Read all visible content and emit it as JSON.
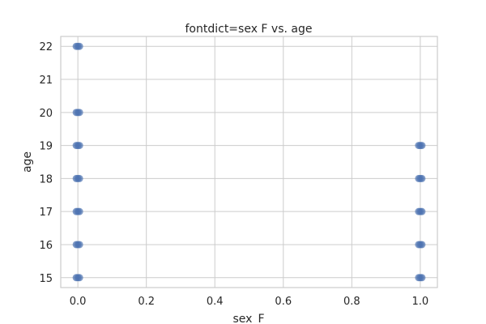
{
  "chart_data": {
    "type": "scatter",
    "title": "fontdict=sex F vs. age",
    "xlabel": "sex_F",
    "ylabel": "age",
    "xlim": [
      -0.05,
      1.05
    ],
    "ylim": [
      14.7,
      22.3
    ],
    "xticks": [
      "0.0",
      "0.2",
      "0.4",
      "0.6",
      "0.8",
      "1.0"
    ],
    "xtick_values": [
      0,
      0.2,
      0.4,
      0.6,
      0.8,
      1.0
    ],
    "yticks": [
      "15",
      "16",
      "17",
      "18",
      "19",
      "20",
      "21",
      "22"
    ],
    "ytick_values": [
      15,
      16,
      17,
      18,
      19,
      20,
      21,
      22
    ],
    "grid": true,
    "marker_color": "#4c72b0",
    "points": [
      {
        "x": 0,
        "y": 15
      },
      {
        "x": 0,
        "y": 16
      },
      {
        "x": 0,
        "y": 17
      },
      {
        "x": 0,
        "y": 18
      },
      {
        "x": 0,
        "y": 19
      },
      {
        "x": 0,
        "y": 20
      },
      {
        "x": 0,
        "y": 22
      },
      {
        "x": 1,
        "y": 15
      },
      {
        "x": 1,
        "y": 16
      },
      {
        "x": 1,
        "y": 17
      },
      {
        "x": 1,
        "y": 18
      },
      {
        "x": 1,
        "y": 19
      }
    ]
  }
}
